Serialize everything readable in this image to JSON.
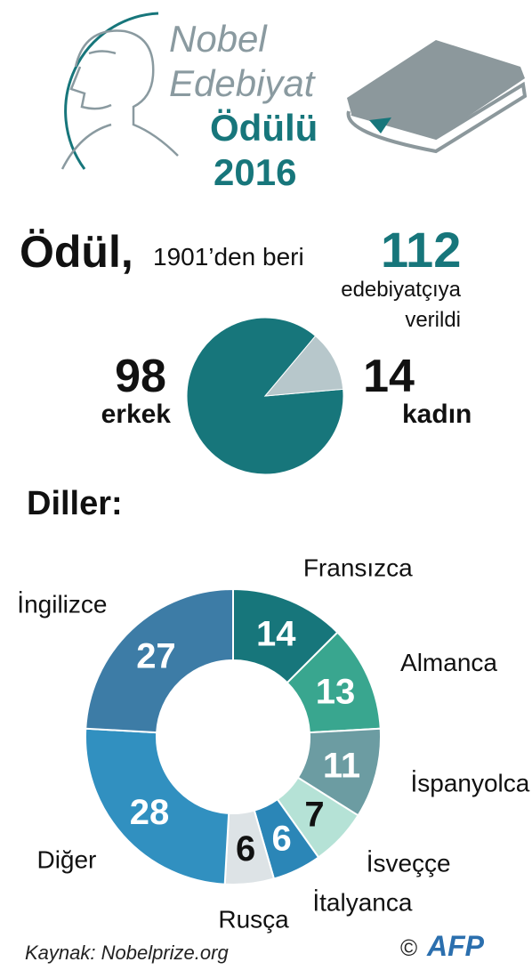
{
  "header": {
    "lines": [
      "Nobel",
      "Edebiyat",
      "Ödülü",
      "2016"
    ]
  },
  "chart_data": [
    {
      "type": "pie",
      "title": "Ödül,",
      "subtitle": "1901’den beri",
      "total": 112,
      "total_caption": [
        "edebiyatçıya",
        "verildi"
      ],
      "categories": [
        "erkek",
        "kadın"
      ],
      "values": [
        98,
        14
      ],
      "colors": [
        "#17767b",
        "#b7c7cb"
      ]
    },
    {
      "type": "donut",
      "title": "Diller:",
      "categories": [
        "Fransızca",
        "Almanca",
        "İspanyolca",
        "İsveççe",
        "İtalyanca",
        "Rusça",
        "Diğer",
        "İngilizce"
      ],
      "values": [
        14,
        13,
        11,
        7,
        6,
        6,
        28,
        27
      ],
      "colors": [
        "#17767b",
        "#39a68f",
        "#6c9ca2",
        "#b5e2d6",
        "#2b86b7",
        "#dde3e6",
        "#3190c0",
        "#3d7ca6"
      ]
    }
  ],
  "source": "Kaynak: Nobelprize.org",
  "credit": "©",
  "logo": "AFP"
}
